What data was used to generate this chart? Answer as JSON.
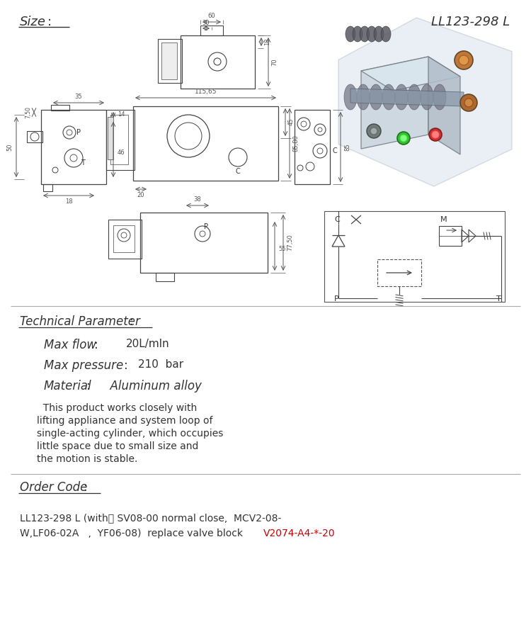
{
  "title": "LL123-298 L",
  "bg_color": "#ffffff",
  "text_color": "#333333",
  "dim_color": "#555555",
  "line_color": "#444444",
  "red_color": "#cc0000",
  "max_flow_value": "20L/mln",
  "max_pressure_value": "210  bar",
  "material_value": "  Aluminum alloy",
  "desc_lines": [
    "  This product works closely with",
    "lifting appliance and system loop of",
    "single-acting cylinder, which occupies",
    "little space due to small size and",
    "the motion is stable."
  ],
  "order_code_line1": "LL123-298 L (with： SV08-00 normal close,  MCV2-08-",
  "order_code_line2": "W,LF06-02A   ,  YF06-08)  replace valve block ",
  "order_code_red": "V2074-A4-*-20"
}
